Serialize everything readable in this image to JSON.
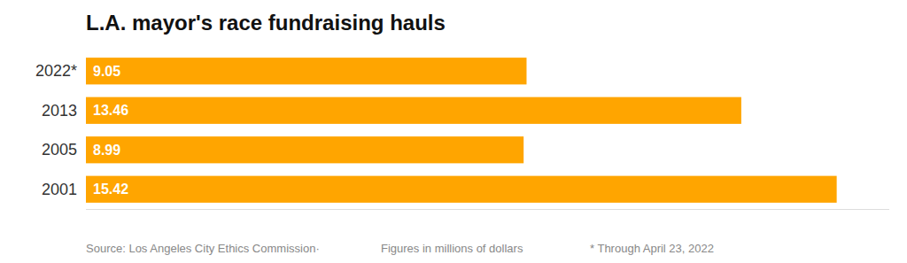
{
  "chart_data": {
    "type": "bar",
    "orientation": "horizontal",
    "title": "L.A. mayor's race fundraising hauls",
    "categories": [
      "2022*",
      "2013",
      "2005",
      "2001"
    ],
    "values": [
      9.05,
      13.46,
      8.99,
      15.42
    ],
    "color": "#FFA500",
    "xlim": [
      0,
      16.5
    ],
    "data_labels": true,
    "tick_labels": "y",
    "annotations": [
      "Source: Los Angeles City Ethics Commission·",
      "Figures in millions of dollars",
      "* Through April 23, 2022"
    ]
  }
}
